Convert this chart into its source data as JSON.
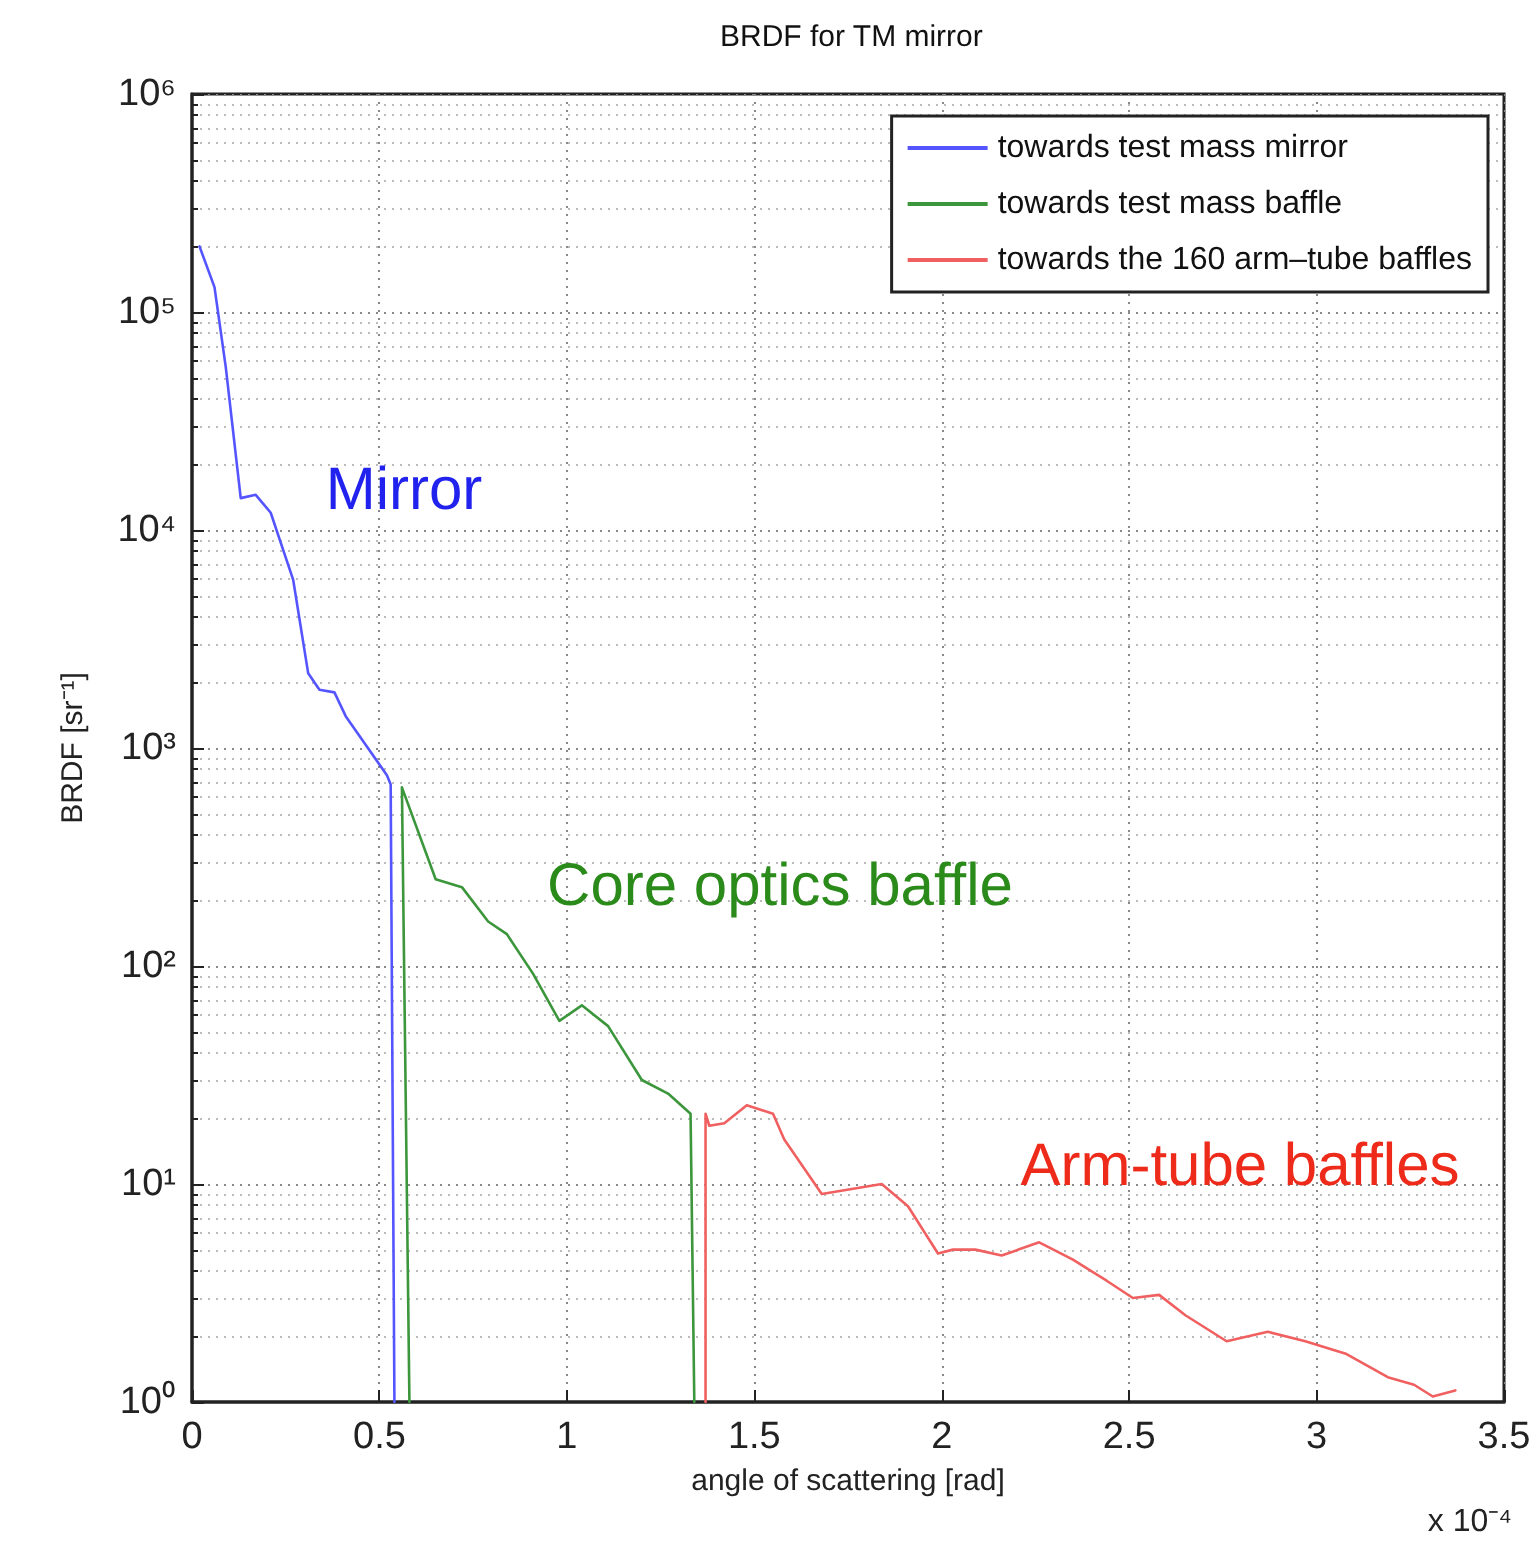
{
  "chart_data": {
    "type": "line",
    "title": "BRDF for TM mirror",
    "xlabel": "angle of scattering [rad]",
    "ylabel": "BRDF [sr⁻¹]",
    "xlim": [
      0,
      3.5
    ],
    "xticks": [
      0,
      0.5,
      1,
      1.5,
      2,
      2.5,
      3,
      3.5
    ],
    "ylim": [
      1,
      1000000
    ],
    "yticks": [
      {
        "value": 1,
        "label": "10⁰"
      },
      {
        "value": 10,
        "label": "10¹"
      },
      {
        "value": 100,
        "label": "10²"
      },
      {
        "value": 1000,
        "label": "10³"
      },
      {
        "value": 10000,
        "label": "10⁴"
      },
      {
        "value": 100000,
        "label": "10⁵"
      },
      {
        "value": 1000000,
        "label": "10⁶"
      }
    ],
    "log": "y",
    "grid": true,
    "legend": "top right",
    "marker": "none",
    "line_style": "solid",
    "series": [
      {
        "name": "towards test mass mirror",
        "color": "#5555ff",
        "x": [
          0.02,
          0.06,
          0.09,
          0.13,
          0.17,
          0.21,
          0.27,
          0.31,
          0.34,
          0.38,
          0.41,
          0.52,
          0.53,
          0.54
        ],
        "values": [
          200000,
          130000,
          56000,
          14000,
          14500,
          12000,
          5900,
          2200,
          1850,
          1800,
          1400,
          750,
          680,
          1
        ]
      },
      {
        "name": "towards test mass baffle",
        "color": "#3c963c",
        "x": [
          0.58,
          0.56,
          0.65,
          0.72,
          0.79,
          0.84,
          0.91,
          0.98,
          1.04,
          1.11,
          1.2,
          1.27,
          1.33,
          1.34
        ],
        "values": [
          1,
          660,
          250,
          230,
          160,
          140,
          92,
          56,
          66,
          53,
          30,
          26,
          21,
          1
        ]
      },
      {
        "name": "towards the 160 arm–tube baffles",
        "color": "#f06060",
        "x": [
          1.37,
          1.37,
          1.38,
          1.42,
          1.48,
          1.55,
          1.58,
          1.68,
          1.84,
          1.91,
          1.99,
          2.03,
          2.09,
          2.16,
          2.26,
          2.35,
          2.44,
          2.51,
          2.58,
          2.65,
          2.76,
          2.87,
          2.97,
          3.08,
          3.19,
          3.26,
          3.31,
          3.37
        ],
        "values": [
          1,
          21,
          18.5,
          19,
          23,
          21,
          16,
          9,
          10,
          7.9,
          4.8,
          5,
          5,
          4.7,
          5.4,
          4.5,
          3.6,
          3.0,
          3.1,
          2.5,
          1.9,
          2.1,
          1.9,
          1.66,
          1.3,
          1.2,
          1.06,
          1.13
        ]
      }
    ],
    "annotations": [
      "Mirror",
      "Core optics baffle",
      "Arm-tube baffles",
      "x 10⁻⁴"
    ]
  }
}
